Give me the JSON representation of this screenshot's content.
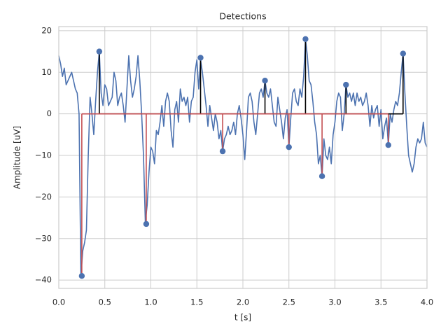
{
  "chart_data": {
    "type": "line",
    "title": "Detections",
    "xlabel": "t [s]",
    "ylabel": "Amplitude [uV]",
    "xlim": [
      0,
      4
    ],
    "ylim": [
      -42,
      21
    ],
    "xticks": [
      {
        "value": 0,
        "label": "0.0"
      },
      0.5,
      {
        "value": 1,
        "label": "1.0"
      },
      1.5,
      {
        "value": 2,
        "label": "2.0"
      },
      2.5,
      {
        "value": 3,
        "label": "3.0"
      },
      3.5,
      {
        "value": 4,
        "label": "4.0"
      }
    ],
    "yticks": [
      {
        "value": -40,
        "label": "−40"
      },
      {
        "value": -30,
        "label": "−30"
      },
      {
        "value": -20,
        "label": "−20"
      },
      {
        "value": -10,
        "label": "−10"
      },
      0,
      10,
      20
    ],
    "grid": true,
    "x": [
      0,
      0.02,
      0.04,
      0.06,
      0.08,
      0.1,
      0.12,
      0.14,
      0.16,
      0.18,
      0.2,
      0.22,
      0.24,
      0.26,
      0.28,
      0.3,
      0.32,
      0.34,
      0.36,
      0.38,
      0.4,
      0.42,
      0.44,
      0.46,
      0.48,
      0.5,
      0.52,
      0.54,
      0.56,
      0.58,
      0.6,
      0.62,
      0.64,
      0.66,
      0.68,
      0.7,
      0.72,
      0.74,
      0.76,
      0.78,
      0.8,
      0.82,
      0.84,
      0.86,
      0.88,
      0.9,
      0.92,
      0.94,
      0.96,
      0.98,
      1,
      1.02,
      1.04,
      1.06,
      1.08,
      1.1,
      1.12,
      1.14,
      1.16,
      1.18,
      1.2,
      1.22,
      1.24,
      1.26,
      1.28,
      1.3,
      1.32,
      1.34,
      1.36,
      1.38,
      1.4,
      1.42,
      1.44,
      1.46,
      1.48,
      1.5,
      1.52,
      1.54,
      1.56,
      1.58,
      1.6,
      1.62,
      1.64,
      1.66,
      1.68,
      1.7,
      1.72,
      1.74,
      1.76,
      1.78,
      1.8,
      1.82,
      1.84,
      1.86,
      1.88,
      1.9,
      1.92,
      1.94,
      1.96,
      1.98,
      2,
      2.02,
      2.04,
      2.06,
      2.08,
      2.1,
      2.12,
      2.14,
      2.16,
      2.18,
      2.2,
      2.22,
      2.24,
      2.26,
      2.28,
      2.3,
      2.32,
      2.34,
      2.36,
      2.38,
      2.4,
      2.42,
      2.44,
      2.46,
      2.48,
      2.5,
      2.52,
      2.54,
      2.56,
      2.58,
      2.6,
      2.62,
      2.64,
      2.66,
      2.68,
      2.7,
      2.72,
      2.74,
      2.76,
      2.78,
      2.8,
      2.82,
      2.84,
      2.86,
      2.88,
      2.9,
      2.92,
      2.94,
      2.96,
      2.98,
      3,
      3.02,
      3.04,
      3.06,
      3.08,
      3.1,
      3.12,
      3.14,
      3.16,
      3.18,
      3.2,
      3.22,
      3.24,
      3.26,
      3.28,
      3.3,
      3.32,
      3.34,
      3.36,
      3.38,
      3.4,
      3.42,
      3.44,
      3.46,
      3.48,
      3.5,
      3.52,
      3.54,
      3.56,
      3.58,
      3.6,
      3.62,
      3.64,
      3.66,
      3.68,
      3.7,
      3.72,
      3.74,
      3.76,
      3.78,
      3.8,
      3.82,
      3.84,
      3.86,
      3.88,
      3.9,
      3.92,
      3.94,
      3.96,
      3.98,
      4
    ],
    "series": [
      {
        "color": "#4c72b0",
        "values": [
          14,
          12,
          9,
          11,
          7,
          8,
          9,
          10,
          8,
          6,
          5,
          0,
          -39,
          -33,
          -31,
          -28,
          -10,
          4,
          0,
          -5,
          3,
          10,
          15,
          5,
          2,
          7,
          6,
          2,
          3,
          4,
          10,
          8,
          2,
          4,
          5,
          2,
          -2,
          6,
          14,
          8,
          4,
          6,
          9,
          14,
          8,
          0,
          -10,
          -26,
          -22,
          -14,
          -8,
          -9,
          -12,
          -4,
          -5,
          -2,
          2,
          -3,
          3,
          5,
          3,
          -4,
          -8,
          1,
          3,
          -2,
          6,
          3,
          4,
          2,
          4,
          -2,
          3,
          4,
          10,
          13,
          6,
          13,
          10,
          6,
          2,
          -3,
          2,
          -1,
          -4,
          0,
          -2,
          -6,
          -4,
          -9,
          -6,
          -5,
          -3,
          -5,
          -4,
          -2,
          -5,
          0,
          2,
          -1,
          -5,
          -11,
          -4,
          4,
          5,
          3,
          -2,
          -5,
          0,
          5,
          6,
          4,
          8,
          5,
          4,
          6,
          2,
          -2,
          -3,
          4,
          1,
          -2,
          -6,
          -1,
          1,
          -8,
          -1,
          5,
          6,
          3,
          2,
          6,
          4,
          9,
          18,
          14,
          8,
          7,
          3,
          -2,
          -5,
          -12,
          -10,
          -15,
          -6,
          -10,
          -11,
          -8,
          -12,
          -5,
          -2,
          3,
          5,
          4,
          -4,
          0,
          7,
          4,
          5,
          3,
          5,
          2,
          5,
          3,
          4,
          2,
          3,
          5,
          2,
          -3,
          2,
          -1,
          1,
          2,
          -3,
          1,
          -6,
          -3,
          -1,
          -7.5,
          0,
          -2,
          1,
          3,
          2,
          5,
          10,
          14.5,
          5,
          -3,
          -10,
          -12,
          -14,
          -12,
          -8,
          -6,
          -7,
          -6,
          -2,
          -7,
          -8
        ]
      }
    ],
    "stems": [
      {
        "color": "#000000",
        "marker_color": "#4c72b0",
        "bottom": 0,
        "x": [
          0.44,
          1.54,
          2.24,
          2.68,
          3.12,
          3.74
        ],
        "values": [
          15,
          13.5,
          8,
          18,
          7,
          14.5
        ]
      },
      {
        "color": "#c44e52",
        "marker_color": "#4c72b0",
        "bottom": 0,
        "x": [
          0.25,
          0.95,
          1.78,
          2.5,
          2.86,
          3.58
        ],
        "values": [
          -39,
          -26.5,
          -9,
          -8,
          -15,
          -7.5
        ]
      }
    ]
  }
}
